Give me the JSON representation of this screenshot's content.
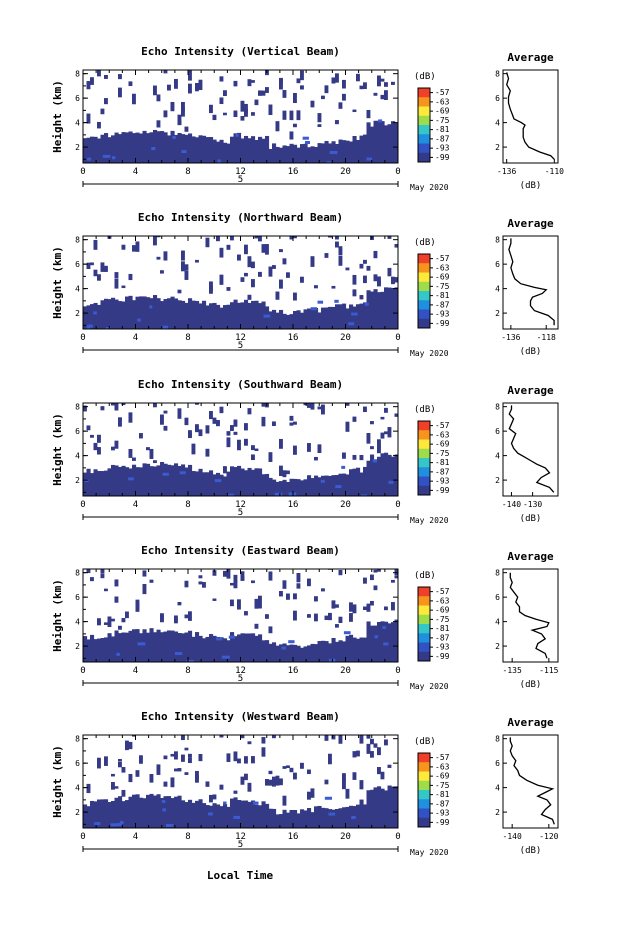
{
  "figure": {
    "xlabel": "Local Time",
    "date_label": "May 2020",
    "day_label": "5",
    "colorbar_unit": "(dB)",
    "colorbar_ticks": [
      "-57",
      "-63",
      "-69",
      "-75",
      "-81",
      "-87",
      "-93",
      "-99"
    ],
    "colorbar_colors": [
      "#f0402a",
      "#f7941d",
      "#fde93a",
      "#9fdc4b",
      "#35c6c7",
      "#1f8fe0",
      "#3151c4",
      "#343a8a"
    ],
    "background_color": "#343a86"
  },
  "chart_data": [
    {
      "type": "heatmap",
      "title": "Echo Intensity (Vertical Beam)",
      "ylabel": "Height (km)",
      "x_ticks": [
        "0",
        "4",
        "8",
        "12",
        "16",
        "20",
        "0"
      ],
      "y_ticks": [
        "2",
        "4",
        "6",
        "8"
      ],
      "xlim": [
        0,
        24
      ],
      "ylim": [
        0.7,
        8.3
      ],
      "profile": {
        "title": "Average",
        "xlabel": "(dB)",
        "x_ticks": [
          "-136",
          "-110"
        ],
        "xlim": [
          -138,
          -108
        ],
        "y_ticks": [
          "2",
          "4",
          "6",
          "8"
        ],
        "ylim": [
          0.7,
          8.3
        ],
        "heights": [
          1.0,
          1.3,
          1.6,
          2.0,
          2.4,
          2.8,
          3.2,
          3.5,
          3.8,
          4.0,
          4.3,
          4.7,
          5.1,
          5.6,
          6.1,
          6.6,
          7.1,
          7.6,
          8.1
        ],
        "values": [
          -110,
          -112,
          -118,
          -124,
          -126,
          -127,
          -127,
          -127,
          -126,
          -128,
          -132,
          -133,
          -134,
          -135,
          -135,
          -134,
          -136,
          -135,
          -136
        ]
      }
    },
    {
      "type": "heatmap",
      "title": "Echo Intensity (Northward Beam)",
      "ylabel": "Height (km)",
      "x_ticks": [
        "0",
        "4",
        "8",
        "12",
        "16",
        "20",
        "0"
      ],
      "y_ticks": [
        "2",
        "4",
        "6",
        "8"
      ],
      "xlim": [
        0,
        24
      ],
      "ylim": [
        0.7,
        8.3
      ],
      "profile": {
        "title": "Average",
        "xlabel": "(dB)",
        "x_ticks": [
          "-136",
          "-118"
        ],
        "xlim": [
          -140,
          -112
        ],
        "y_ticks": [
          "2",
          "4",
          "6",
          "8"
        ],
        "ylim": [
          0.7,
          8.3
        ],
        "heights": [
          1.0,
          1.4,
          1.8,
          2.2,
          2.6,
          3.0,
          3.3,
          3.6,
          3.9,
          4.1,
          4.4,
          4.8,
          5.2,
          5.7,
          6.2,
          6.7,
          7.2,
          7.7,
          8.1
        ],
        "values": [
          -114,
          -114,
          -117,
          -124,
          -126,
          -126,
          -125,
          -120,
          -118,
          -124,
          -131,
          -134,
          -135,
          -136,
          -135,
          -136,
          -137,
          -136,
          -136
        ]
      }
    },
    {
      "type": "heatmap",
      "title": "Echo Intensity (Southward Beam)",
      "ylabel": "Height (km)",
      "x_ticks": [
        "0",
        "4",
        "8",
        "12",
        "16",
        "20",
        "0"
      ],
      "y_ticks": [
        "2",
        "4",
        "6",
        "8"
      ],
      "xlim": [
        0,
        24
      ],
      "ylim": [
        0.7,
        8.3
      ],
      "profile": {
        "title": "Average",
        "xlabel": "(dB)",
        "x_ticks": [
          "-140",
          "-130"
        ],
        "xlim": [
          -144,
          -118
        ],
        "y_ticks": [
          "2",
          "4",
          "6",
          "8"
        ],
        "ylim": [
          0.7,
          8.3
        ],
        "heights": [
          1.0,
          1.4,
          1.8,
          2.2,
          2.6,
          3.0,
          3.3,
          3.6,
          3.9,
          4.2,
          4.6,
          5.0,
          5.4,
          5.8,
          6.2,
          6.6,
          7.0,
          7.4,
          7.8,
          8.1
        ],
        "values": [
          -120,
          -122,
          -128,
          -126,
          -122,
          -124,
          -128,
          -131,
          -134,
          -137,
          -139,
          -140,
          -139,
          -138,
          -141,
          -140,
          -139,
          -141,
          -140,
          -140
        ]
      }
    },
    {
      "type": "heatmap",
      "title": "Echo Intensity (Eastward Beam)",
      "ylabel": "Height (km)",
      "x_ticks": [
        "0",
        "4",
        "8",
        "12",
        "16",
        "20",
        "0"
      ],
      "y_ticks": [
        "2",
        "4",
        "6",
        "8"
      ],
      "xlim": [
        0,
        24
      ],
      "ylim": [
        0.7,
        8.3
      ],
      "profile": {
        "title": "Average",
        "xlabel": "(dB)",
        "x_ticks": [
          "-135",
          "-115"
        ],
        "xlim": [
          -140,
          -110
        ],
        "y_ticks": [
          "2",
          "4",
          "6",
          "8"
        ],
        "ylim": [
          0.7,
          8.3
        ],
        "heights": [
          1.0,
          1.4,
          1.8,
          2.2,
          2.6,
          3.0,
          3.3,
          3.6,
          3.9,
          4.2,
          4.5,
          4.8,
          5.2,
          5.6,
          6.0,
          6.4,
          6.8,
          7.2,
          7.6,
          8.0
        ],
        "values": [
          -116,
          -117,
          -122,
          -121,
          -117,
          -119,
          -124,
          -116,
          -115,
          -122,
          -128,
          -131,
          -131,
          -133,
          -132,
          -134,
          -136,
          -135,
          -136,
          -136
        ]
      }
    },
    {
      "type": "heatmap",
      "title": "Echo Intensity (Westward Beam)",
      "ylabel": "Height (km)",
      "x_ticks": [
        "0",
        "4",
        "8",
        "12",
        "16",
        "20",
        "0"
      ],
      "y_ticks": [
        "2",
        "4",
        "6",
        "8"
      ],
      "xlim": [
        0,
        24
      ],
      "ylim": [
        0.7,
        8.3
      ],
      "profile": {
        "title": "Average",
        "xlabel": "(dB)",
        "x_ticks": [
          "-140",
          "-120"
        ],
        "xlim": [
          -145,
          -115
        ],
        "y_ticks": [
          "2",
          "4",
          "6",
          "8"
        ],
        "ylim": [
          0.7,
          8.3
        ],
        "heights": [
          1.0,
          1.4,
          1.8,
          2.2,
          2.6,
          3.0,
          3.3,
          3.6,
          3.9,
          4.2,
          4.6,
          5.0,
          5.4,
          5.8,
          6.2,
          6.6,
          7.0,
          7.4,
          7.8,
          8.1
        ],
        "values": [
          -117,
          -118,
          -124,
          -122,
          -119,
          -121,
          -126,
          -122,
          -118,
          -126,
          -132,
          -136,
          -137,
          -139,
          -138,
          -140,
          -141,
          -140,
          -141,
          -141
        ]
      }
    }
  ]
}
